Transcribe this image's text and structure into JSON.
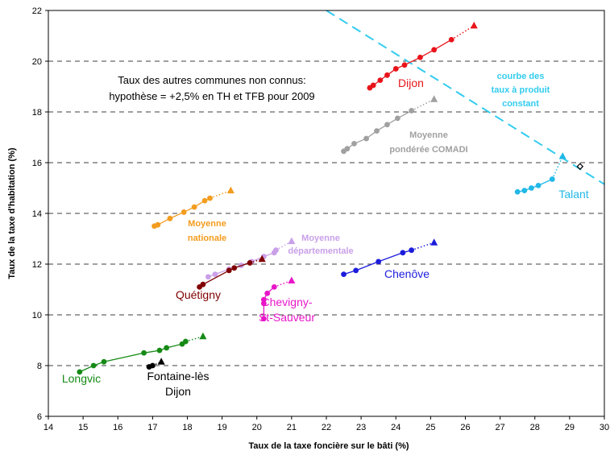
{
  "chart_data": {
    "type": "scatter",
    "title": "",
    "xlabel": "Taux de la taxe foncière sur le bâti (%)",
    "ylabel": "Taux de la taxe d'habitation (%)",
    "xlim": [
      14,
      30
    ],
    "ylim": [
      6,
      22
    ],
    "x_ticks": [
      14,
      15,
      16,
      17,
      18,
      19,
      20,
      21,
      22,
      23,
      24,
      25,
      26,
      27,
      28,
      29,
      30
    ],
    "y_ticks": [
      6,
      8,
      10,
      12,
      14,
      16,
      18,
      20,
      22
    ],
    "grid": "horizontal dashed",
    "annotation": {
      "lines": [
        "Taux des autres communes non connus:",
        "hypothèse = +2,5% en TH et TFB pour 2009"
      ]
    },
    "reference_line": {
      "label_lines": [
        "courbe des",
        "taux à produit",
        "constant"
      ],
      "color": "#33CCEE",
      "points": [
        [
          22,
          22
        ],
        [
          30,
          15.15
        ]
      ]
    },
    "series": [
      {
        "name_lines": [
          "Dijon"
        ],
        "color": "#E8141B",
        "bold": false,
        "points": [
          [
            23.25,
            18.95
          ],
          [
            23.35,
            19.05
          ],
          [
            23.55,
            19.25
          ],
          [
            23.75,
            19.45
          ],
          [
            24.0,
            19.7
          ],
          [
            24.25,
            19.85
          ],
          [
            24.7,
            20.15
          ],
          [
            25.1,
            20.45
          ],
          [
            25.6,
            20.85
          ]
        ],
        "projection": [
          26.25,
          21.4
        ]
      },
      {
        "name_lines": [
          "Moyenne",
          "pondérée COMADI"
        ],
        "color": "#A0A0A0",
        "bold": true,
        "points": [
          [
            22.5,
            16.45
          ],
          [
            22.6,
            16.55
          ],
          [
            22.8,
            16.75
          ],
          [
            23.15,
            16.95
          ],
          [
            23.45,
            17.25
          ],
          [
            23.75,
            17.5
          ],
          [
            24.05,
            17.75
          ],
          [
            24.45,
            18.05
          ]
        ],
        "projection": [
          25.1,
          18.5
        ]
      },
      {
        "name_lines": [
          "Talant"
        ],
        "color": "#21B8E8",
        "bold": false,
        "points": [
          [
            27.5,
            14.85
          ],
          [
            27.7,
            14.9
          ],
          [
            27.9,
            15.0
          ],
          [
            28.1,
            15.1
          ],
          [
            28.5,
            15.35
          ]
        ],
        "projection": [
          28.8,
          16.25
        ]
      },
      {
        "name_lines": [
          "Moyenne",
          "nationale"
        ],
        "color": "#F39C1E",
        "bold": true,
        "points": [
          [
            17.05,
            13.5
          ],
          [
            17.15,
            13.55
          ],
          [
            17.5,
            13.8
          ],
          [
            17.9,
            14.05
          ],
          [
            18.2,
            14.25
          ],
          [
            18.5,
            14.5
          ],
          [
            18.65,
            14.6
          ]
        ],
        "projection": [
          19.25,
          14.9
        ]
      },
      {
        "name_lines": [
          "Moyenne",
          "départementale"
        ],
        "color": "#C9A0E8",
        "bold": true,
        "points": [
          [
            18.6,
            11.5
          ],
          [
            18.8,
            11.6
          ],
          [
            19.2,
            11.8
          ],
          [
            19.55,
            11.95
          ],
          [
            19.85,
            12.1
          ],
          [
            20.2,
            12.3
          ],
          [
            20.5,
            12.45
          ],
          [
            20.55,
            12.55
          ]
        ],
        "projection": [
          21.0,
          12.9
        ]
      },
      {
        "name_lines": [
          "Quétigny"
        ],
        "color": "#800000",
        "bold": false,
        "points": [
          [
            18.35,
            11.1
          ],
          [
            18.45,
            11.2
          ],
          [
            19.2,
            11.75
          ],
          [
            19.35,
            11.85
          ],
          [
            19.8,
            12.05
          ]
        ],
        "projection": [
          20.15,
          12.2
        ]
      },
      {
        "name_lines": [
          "Chenôve"
        ],
        "color": "#1C1CDC",
        "bold": false,
        "points": [
          [
            22.5,
            11.6
          ],
          [
            22.85,
            11.75
          ],
          [
            23.5,
            12.1
          ],
          [
            24.2,
            12.45
          ],
          [
            24.45,
            12.55
          ]
        ],
        "projection": [
          25.1,
          12.85
        ]
      },
      {
        "name_lines": [
          "Chevigny-",
          "St-Sauveur"
        ],
        "color": "#E816C8",
        "bold": false,
        "points": [
          [
            20.2,
            9.85
          ],
          [
            20.2,
            10.45
          ],
          [
            20.2,
            10.6
          ],
          [
            20.3,
            10.85
          ],
          [
            20.5,
            11.1
          ]
        ],
        "projection": [
          21.0,
          11.35
        ]
      },
      {
        "name_lines": [
          "Longvic"
        ],
        "color": "#158A15",
        "bold": false,
        "points": [
          [
            14.9,
            7.75
          ],
          [
            15.3,
            8.0
          ],
          [
            15.6,
            8.15
          ],
          [
            16.75,
            8.5
          ],
          [
            17.2,
            8.6
          ],
          [
            17.4,
            8.7
          ],
          [
            17.85,
            8.85
          ],
          [
            17.95,
            8.95
          ]
        ],
        "projection": [
          18.45,
          9.15
        ]
      },
      {
        "name_lines": [
          "Fontaine-lès",
          "Dijon"
        ],
        "color": "#000000",
        "bold": false,
        "points": [
          [
            16.9,
            7.95
          ],
          [
            17.0,
            8.0
          ]
        ],
        "projection": [
          17.25,
          8.15
        ]
      }
    ],
    "special_marker": {
      "shape": "diamond",
      "color": "#000000",
      "point": [
        29.3,
        15.85
      ]
    }
  }
}
